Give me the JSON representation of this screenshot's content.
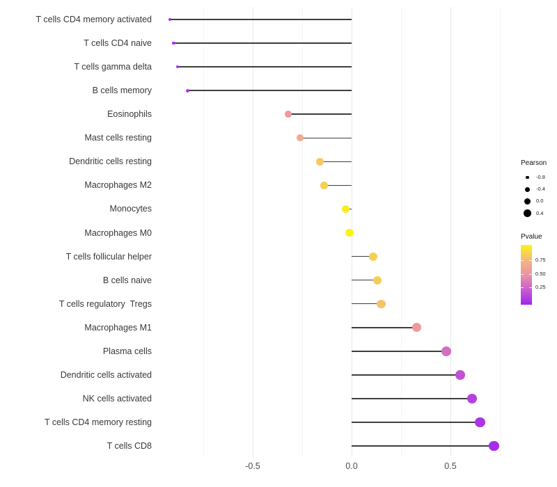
{
  "chart_data": {
    "type": "scatter",
    "variant": "lollipop",
    "orientation": "horizontal",
    "title": "",
    "xlabel": "",
    "ylabel": "",
    "grid": true,
    "background": "#ffffff",
    "points": [
      {
        "label": "T cells CD4 memory activated",
        "pearson": -0.92,
        "pvalue": 0.03
      },
      {
        "label": "T cells CD4 naive",
        "pearson": -0.9,
        "pvalue": 0.04
      },
      {
        "label": "T cells gamma delta",
        "pearson": -0.88,
        "pvalue": 0.05
      },
      {
        "label": "B cells memory",
        "pearson": -0.83,
        "pvalue": 0.09
      },
      {
        "label": "Eosinophils",
        "pearson": -0.32,
        "pvalue": 0.55
      },
      {
        "label": "Mast cells resting",
        "pearson": -0.26,
        "pvalue": 0.65
      },
      {
        "label": "Dendritic cells resting",
        "pearson": -0.16,
        "pvalue": 0.82
      },
      {
        "label": "Macrophages M2",
        "pearson": -0.14,
        "pvalue": 0.85
      },
      {
        "label": "Monocytes",
        "pearson": -0.03,
        "pvalue": 0.97
      },
      {
        "label": "Macrophages M0",
        "pearson": -0.01,
        "pvalue": 0.99
      },
      {
        "label": "T cells follicular helper",
        "pearson": 0.11,
        "pvalue": 0.85
      },
      {
        "label": "B cells naive",
        "pearson": 0.13,
        "pvalue": 0.83
      },
      {
        "label": "T cells regulatory  Tregs",
        "pearson": 0.15,
        "pvalue": 0.8
      },
      {
        "label": "Macrophages M1",
        "pearson": 0.33,
        "pvalue": 0.55
      },
      {
        "label": "Plasma cells",
        "pearson": 0.48,
        "pvalue": 0.33
      },
      {
        "label": "Dendritic cells activated",
        "pearson": 0.55,
        "pvalue": 0.2
      },
      {
        "label": "NK cells activated",
        "pearson": 0.61,
        "pvalue": 0.13
      },
      {
        "label": "T cells CD4 memory resting",
        "pearson": 0.65,
        "pvalue": 0.07
      },
      {
        "label": "T cells CD8",
        "pearson": 0.72,
        "pvalue": 0.03
      }
    ],
    "x_axis": {
      "tick_values": [
        -0.5,
        0.0,
        0.5
      ],
      "tick_labels": [
        "-0.5",
        "0.0",
        "0.5"
      ],
      "minor_tick_values": [
        -0.75,
        -0.25,
        0.25,
        0.75
      ],
      "lim": [
        -0.96,
        0.76
      ]
    },
    "legend": {
      "size": {
        "title": "Pearson",
        "entries": [
          {
            "label": "-0.8",
            "value": -0.8
          },
          {
            "label": "-0.4",
            "value": -0.4
          },
          {
            "label": "0.0",
            "value": 0.0
          },
          {
            "label": "0.4",
            "value": 0.4
          }
        ],
        "dot_color": "#000000"
      },
      "color": {
        "title": "Pvalue",
        "tick_labels": [
          "0.75",
          "0.50",
          "0.25"
        ],
        "tick_values": [
          0.75,
          0.5,
          0.25
        ],
        "range": [
          0,
          1
        ],
        "gradient_stops": [
          {
            "p": 0.0,
            "color": "#A124EE"
          },
          {
            "p": 0.25,
            "color": "#C75ECF"
          },
          {
            "p": 0.5,
            "color": "#EB94A5"
          },
          {
            "p": 0.75,
            "color": "#F3B87E"
          },
          {
            "p": 1.0,
            "color": "#FAF514"
          }
        ]
      }
    },
    "style": {
      "stem_color": "#3d3d3d",
      "grid_major_color": "#e7e7e7",
      "grid_minor_color": "#f4f4f4",
      "axis_text_color": "#4d4d4d",
      "label_text_color": "#383838"
    }
  }
}
